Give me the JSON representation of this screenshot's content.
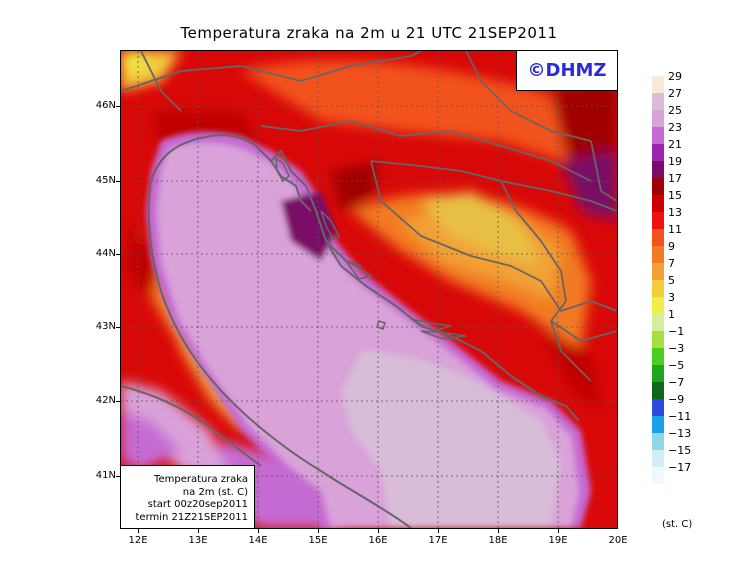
{
  "title": "Temperatura zraka na 2m u 21 UTC 21SEP2011",
  "copyright": "©DHMZ",
  "info_box": {
    "line1": "Temperatura zraka",
    "line2": "na 2m (st. C)",
    "line3": "start 00z20sep2011",
    "line4": "termin 21Z21SEP2011"
  },
  "lat_labels": [
    "46N",
    "45N",
    "44N",
    "43N",
    "42N",
    "41N"
  ],
  "lon_labels": [
    "12E",
    "13E",
    "14E",
    "15E",
    "16E",
    "17E",
    "18E",
    "19E",
    "20E"
  ],
  "legend": {
    "units": "(st. C)",
    "labels": [
      "29",
      "27",
      "25",
      "23",
      "21",
      "19",
      "17",
      "15",
      "13",
      "11",
      "9",
      "7",
      "5",
      "3",
      "1",
      "−1",
      "−3",
      "−5",
      "−7",
      "−9",
      "−11",
      "−13",
      "−15",
      "−17"
    ],
    "colors": [
      "#fbe9d8",
      "#d8bcd8",
      "#d9a2d9",
      "#c66bd3",
      "#9b25b0",
      "#7a0c66",
      "#a00000",
      "#d10000",
      "#ef1010",
      "#f2521e",
      "#f27a22",
      "#f2a035",
      "#f2cd3c",
      "#eeee44",
      "#d8ec9e",
      "#a6e03c",
      "#4ecc22",
      "#1fa61f",
      "#11661c",
      "#2a4ae0",
      "#1aa0e6",
      "#8ed6e8",
      "#cfeff5",
      "#eef9fb"
    ]
  }
}
